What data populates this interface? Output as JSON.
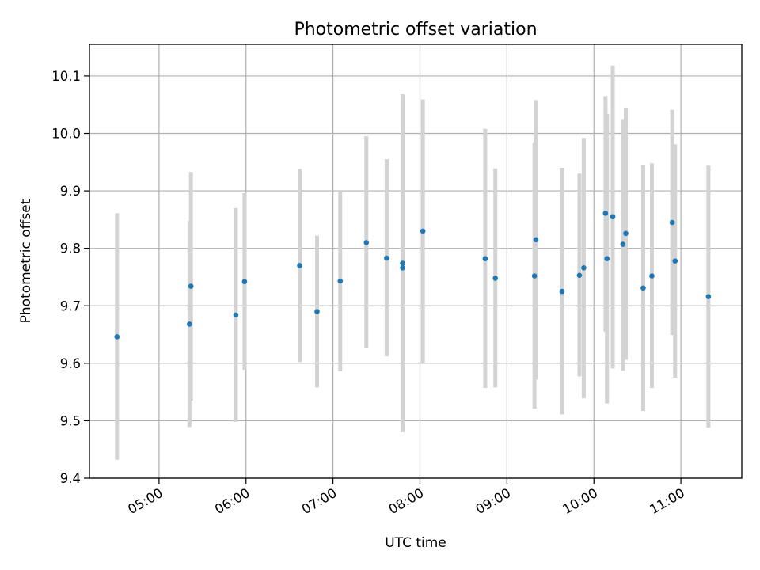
{
  "chart_data": {
    "type": "scatter",
    "title": "Photometric offset variation",
    "xlabel": "UTC time",
    "ylabel": "Photometric offset",
    "x_tick_labels": [
      "05:00",
      "06:00",
      "07:00",
      "08:00",
      "09:00",
      "10:00",
      "11:00"
    ],
    "y_tick_labels": [
      "9.4",
      "9.5",
      "9.6",
      "9.7",
      "9.8",
      "9.9",
      "10.0",
      "10.1"
    ],
    "xlim": [
      "04:12",
      "11:42"
    ],
    "ylim": [
      9.4,
      10.155
    ],
    "grid": true,
    "colors": {
      "marker": "#1f77b4",
      "errorbar": "#d3d3d3",
      "grid": "#b0b0b0",
      "axes": "#000000"
    },
    "series": [
      {
        "points": [
          {
            "x": "04:31",
            "y": 9.646,
            "ylow": 9.432,
            "yhigh": 9.861
          },
          {
            "x": "05:21",
            "y": 9.668,
            "ylow": 9.489,
            "yhigh": 9.847
          },
          {
            "x": "05:22",
            "y": 9.734,
            "ylow": 9.535,
            "yhigh": 9.933
          },
          {
            "x": "05:53",
            "y": 9.684,
            "ylow": 9.498,
            "yhigh": 9.87
          },
          {
            "x": "05:59",
            "y": 9.742,
            "ylow": 9.589,
            "yhigh": 9.896
          },
          {
            "x": "06:37",
            "y": 9.77,
            "ylow": 9.602,
            "yhigh": 9.938
          },
          {
            "x": "06:49",
            "y": 9.69,
            "ylow": 9.558,
            "yhigh": 9.822
          },
          {
            "x": "07:05",
            "y": 9.743,
            "ylow": 9.586,
            "yhigh": 9.9
          },
          {
            "x": "07:23",
            "y": 9.81,
            "ylow": 9.626,
            "yhigh": 9.995
          },
          {
            "x": "07:37",
            "y": 9.783,
            "ylow": 9.612,
            "yhigh": 9.955
          },
          {
            "x": "07:48",
            "y": 9.774,
            "ylow": 9.48,
            "yhigh": 10.068
          },
          {
            "x": "07:48",
            "y": 9.766,
            "ylow": 9.481,
            "yhigh": 10.051
          },
          {
            "x": "08:02",
            "y": 9.83,
            "ylow": 9.601,
            "yhigh": 10.059
          },
          {
            "x": "08:45",
            "y": 9.782,
            "ylow": 9.557,
            "yhigh": 10.008
          },
          {
            "x": "08:52",
            "y": 9.748,
            "ylow": 9.558,
            "yhigh": 9.939
          },
          {
            "x": "09:19",
            "y": 9.752,
            "ylow": 9.521,
            "yhigh": 9.983
          },
          {
            "x": "09:20",
            "y": 9.815,
            "ylow": 9.572,
            "yhigh": 10.058
          },
          {
            "x": "09:38",
            "y": 9.725,
            "ylow": 9.511,
            "yhigh": 9.94
          },
          {
            "x": "09:50",
            "y": 9.753,
            "ylow": 9.577,
            "yhigh": 9.93
          },
          {
            "x": "09:53",
            "y": 9.766,
            "ylow": 9.539,
            "yhigh": 9.992
          },
          {
            "x": "10:08",
            "y": 9.861,
            "ylow": 9.655,
            "yhigh": 10.065
          },
          {
            "x": "10:09",
            "y": 9.782,
            "ylow": 9.53,
            "yhigh": 10.034
          },
          {
            "x": "10:13",
            "y": 9.855,
            "ylow": 9.591,
            "yhigh": 10.118
          },
          {
            "x": "10:20",
            "y": 9.807,
            "ylow": 9.587,
            "yhigh": 10.025
          },
          {
            "x": "10:22",
            "y": 9.826,
            "ylow": 9.606,
            "yhigh": 10.045
          },
          {
            "x": "10:34",
            "y": 9.731,
            "ylow": 9.517,
            "yhigh": 9.945
          },
          {
            "x": "10:40",
            "y": 9.752,
            "ylow": 9.557,
            "yhigh": 9.948
          },
          {
            "x": "10:54",
            "y": 9.845,
            "ylow": 9.649,
            "yhigh": 10.041
          },
          {
            "x": "10:56",
            "y": 9.778,
            "ylow": 9.575,
            "yhigh": 9.981
          },
          {
            "x": "11:19",
            "y": 9.716,
            "ylow": 9.488,
            "yhigh": 9.944
          }
        ]
      }
    ]
  }
}
